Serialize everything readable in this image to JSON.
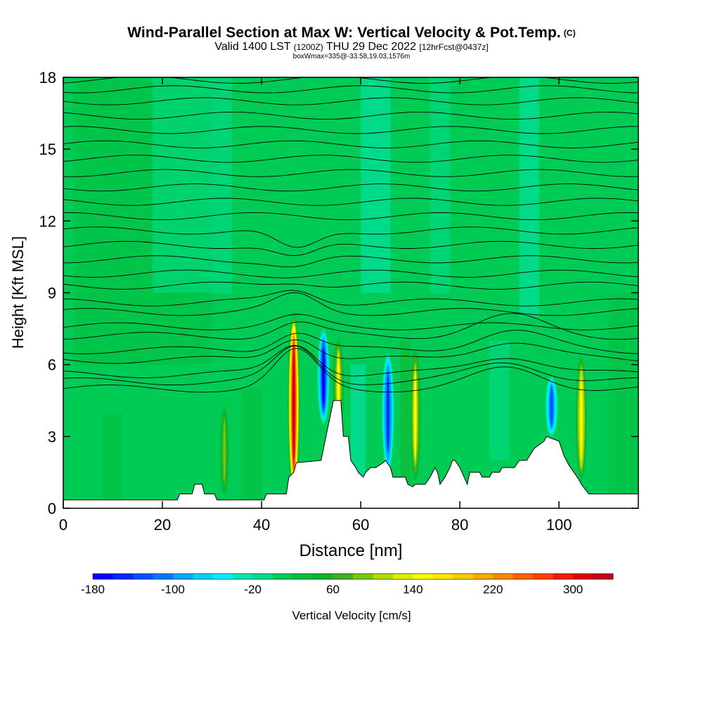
{
  "title": {
    "main": "Wind-Parallel Section at Max W: Vertical Velocity & Pot.Temp.",
    "copyright": "(C)",
    "valid_prefix": "Valid 1400 LST",
    "valid_utc": "(1200Z)",
    "valid_date": "THU 29 Dec 2022",
    "forecast": "[12hrFcst@0437z]",
    "box": "boxWmax=335@-33.58,19.03,1576m"
  },
  "chart_data": {
    "type": "heatmap",
    "xlabel": "Distance [nm]",
    "ylabel": "Height [Kft MSL]",
    "xlim": [
      0,
      116
    ],
    "ylim": [
      0,
      18
    ],
    "x_ticks": [
      "0",
      "20",
      "40",
      "60",
      "80",
      "100"
    ],
    "y_ticks": [
      "0",
      "3",
      "6",
      "9",
      "12",
      "15",
      "18"
    ],
    "colorbar": {
      "label": "Vertical Velocity [cm/s]",
      "tick_labels": [
        "-180",
        "-100",
        "-20",
        "60",
        "140",
        "220",
        "300"
      ],
      "min": -180,
      "max": 340,
      "step": 20,
      "colors": [
        "#0000ff",
        "#0028ff",
        "#0050ff",
        "#0078ff",
        "#00a8ff",
        "#00d0ff",
        "#00f0ff",
        "#00e6b4",
        "#00dc8c",
        "#00cc55",
        "#00c040",
        "#10b428",
        "#3cb41e",
        "#78c814",
        "#b4dc0a",
        "#dcf000",
        "#ffff00",
        "#ffe600",
        "#ffcc00",
        "#ffaa00",
        "#ff8800",
        "#ff6400",
        "#ff4000",
        "#f01e00",
        "#e00000",
        "#c80020"
      ]
    },
    "background_value_cms": 0,
    "updraft_cores": [
      {
        "x": 46.5,
        "bottom": 0.5,
        "top": 8.2,
        "peak_cms": 335
      },
      {
        "x": 55.5,
        "bottom": 3.0,
        "top": 7.2,
        "peak_cms": 140
      },
      {
        "x": 71.0,
        "bottom": 1.0,
        "top": 6.8,
        "peak_cms": 140
      },
      {
        "x": 104.5,
        "bottom": 1.0,
        "top": 6.5,
        "peak_cms": 150
      },
      {
        "x": 32.5,
        "bottom": 0.3,
        "top": 4.5,
        "peak_cms": 80
      }
    ],
    "downdraft_cores": [
      {
        "x": 52.5,
        "bottom": 3.5,
        "top": 7.5,
        "peak_cms": -180
      },
      {
        "x": 65.5,
        "bottom": 1.5,
        "top": 6.5,
        "peak_cms": -150
      },
      {
        "x": 98.5,
        "bottom": 3.0,
        "top": 5.5,
        "peak_cms": -130
      }
    ],
    "terrain_kft": {
      "x": [
        0,
        23,
        23.5,
        26,
        26.5,
        28,
        28.5,
        30.5,
        31,
        40.5,
        41,
        45,
        45.5,
        46.5,
        47,
        52,
        53,
        54,
        54.5,
        56,
        56.5,
        57.5,
        58,
        59,
        59.5,
        60.5,
        61,
        62,
        63,
        64.5,
        65,
        66,
        66.5,
        69,
        69.5,
        70.5,
        71,
        73,
        74,
        75,
        75.5,
        76,
        77,
        78,
        78.5,
        79,
        80,
        81.5,
        82,
        84,
        84.5,
        86,
        86.5,
        88,
        88.5,
        91,
        92,
        93.5,
        95,
        97,
        97.5,
        100,
        101,
        102,
        103,
        104,
        104.5,
        106,
        116
      ],
      "y": [
        0.35,
        0.35,
        0.6,
        0.6,
        1.0,
        1.0,
        0.6,
        0.6,
        0.35,
        0.35,
        0.6,
        0.6,
        1.3,
        1.5,
        1.9,
        2.0,
        3.0,
        4.0,
        4.5,
        4.5,
        3.0,
        3.0,
        2.0,
        1.7,
        1.5,
        1.3,
        1.5,
        1.7,
        1.7,
        1.9,
        2.0,
        1.7,
        1.3,
        1.3,
        1.0,
        0.9,
        1.0,
        1.0,
        1.3,
        1.7,
        1.5,
        1.0,
        1.3,
        1.7,
        2.0,
        2.0,
        1.7,
        1.0,
        1.5,
        1.5,
        1.3,
        1.3,
        1.5,
        1.5,
        1.7,
        1.7,
        2.0,
        2.0,
        2.5,
        2.8,
        3.0,
        2.8,
        2.2,
        1.8,
        1.5,
        1.2,
        1.0,
        0.6,
        0.6
      ]
    },
    "theta_contours_kft_at_x0": [
      5.0,
      5.3,
      5.6,
      6.2,
      6.6,
      7.2,
      7.6,
      8.2,
      8.6,
      9.3,
      9.8,
      10.4,
      11.0,
      11.6,
      12.2,
      12.8,
      13.4,
      14.0,
      14.6,
      15.2,
      15.8,
      16.4,
      17.0,
      17.5,
      17.9
    ]
  }
}
